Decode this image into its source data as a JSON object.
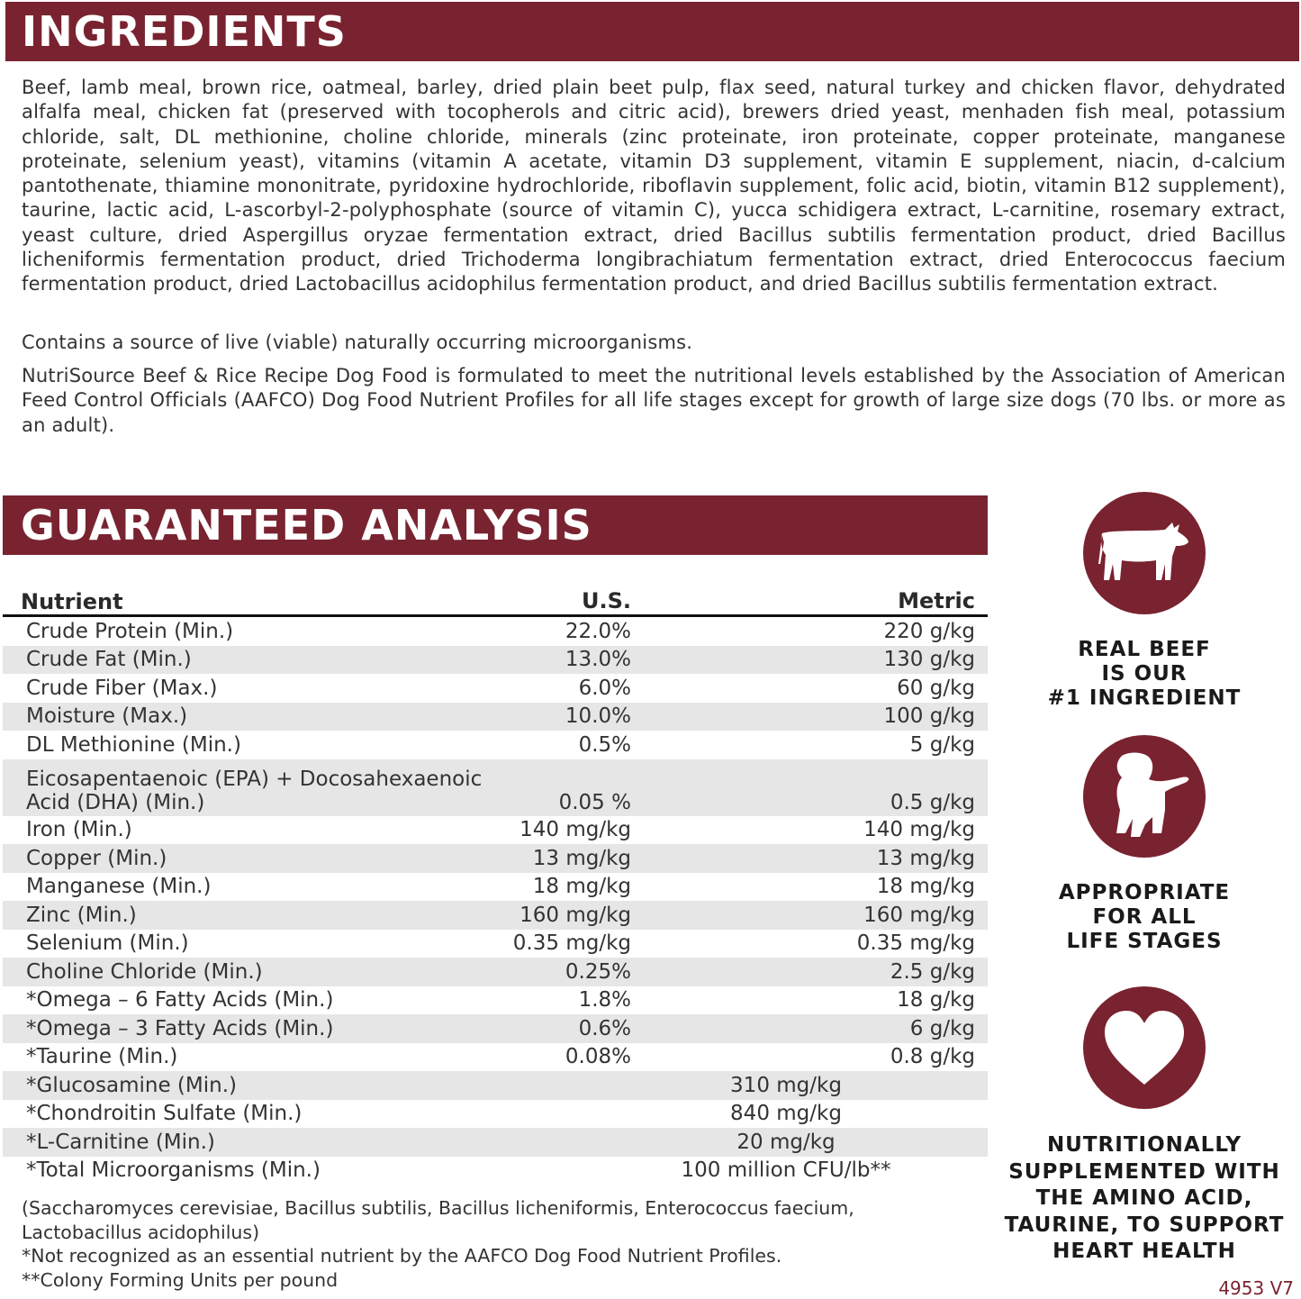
{
  "ingredients": {
    "title": "INGREDIENTS",
    "text": "Beef, lamb meal, brown rice, oatmeal, barley, dried plain beet pulp, flax seed, natural turkey and chicken flavor, dehydrated alfalfa meal, chicken fat (preserved with tocopherols and citric acid), brewers dried yeast, menhaden fish meal, potassium chloride, salt, DL methionine, choline chloride, minerals (zinc proteinate, iron proteinate, copper proteinate, manganese proteinate, selenium yeast), vitamins (vitamin A acetate, vitamin D3 supplement, vitamin E supplement, niacin, d-calcium pantothenate, thiamine mononitrate, pyridoxine hydrochloride, riboflavin supplement, folic acid, biotin, vitamin B12 supplement), taurine, lactic acid, L-ascorbyl-2-polyphosphate (source of vitamin C), yucca schidigera extract, L-carnitine, rosemary extract, yeast culture, dried Aspergillus oryzae fermentation extract, dried Bacillus subtilis fermentation product, dried Bacillus licheniformis fermentation product, dried Trichoderma longibrachiatum fermentation extract, dried Enterococcus faecium fermentation product, dried Lactobacillus acidophilus fermentation product, and dried Bacillus subtilis fermentation extract.",
    "microorganisms": "Contains a source of live (viable) naturally occurring microorganisms.",
    "aafco": "NutriSource Beef & Rice Recipe Dog Food is formulated to meet the nutritional levels established by the Association of American Feed Control Officials (AAFCO) Dog Food Nutrient Profiles for all life stages except for growth of large size dogs (70 lbs. or more as an adult)."
  },
  "analysis": {
    "title": "GUARANTEED ANALYSIS",
    "headers": [
      "Nutrient",
      "U.S.",
      "Metric"
    ],
    "rows": [
      {
        "nutrient": "Crude Protein (Min.)",
        "us": "22.0%",
        "metric": "220 g/kg"
      },
      {
        "nutrient": "Crude Fat (Min.)",
        "us": "13.0%",
        "metric": "130 g/kg"
      },
      {
        "nutrient": "Crude Fiber (Max.)",
        "us": "6.0%",
        "metric": "60 g/kg"
      },
      {
        "nutrient": "Moisture (Max.)",
        "us": "10.0%",
        "metric": "100 g/kg"
      },
      {
        "nutrient": "DL Methionine (Min.)",
        "us": "0.5%",
        "metric": "5 g/kg"
      },
      {
        "nutrient": "Eicosapentaenoic (EPA) + Docosahexaenoic Acid (DHA) (Min.)",
        "us": "0.05 %",
        "metric": "0.5 g/kg"
      },
      {
        "nutrient": "Iron (Min.)",
        "us": "140 mg/kg",
        "metric": "140 mg/kg"
      },
      {
        "nutrient": "Copper (Min.)",
        "us": "13 mg/kg",
        "metric": "13 mg/kg"
      },
      {
        "nutrient": "Manganese (Min.)",
        "us": "18 mg/kg",
        "metric": "18 mg/kg"
      },
      {
        "nutrient": "Zinc (Min.)",
        "us": "160 mg/kg",
        "metric": "160 mg/kg"
      },
      {
        "nutrient": "Selenium (Min.)",
        "us": "0.35 mg/kg",
        "metric": "0.35 mg/kg"
      },
      {
        "nutrient": "Choline Chloride (Min.)",
        "us": "0.25%",
        "metric": "2.5 g/kg"
      },
      {
        "nutrient": "*Omega – 6 Fatty Acids (Min.)",
        "us": "1.8%",
        "metric": "18 g/kg"
      },
      {
        "nutrient": "*Omega – 3 Fatty Acids (Min.)",
        "us": "0.6%",
        "metric": "6 g/kg"
      },
      {
        "nutrient": "*Taurine (Min.)",
        "us": "0.08%",
        "metric": "0.8 g/kg"
      }
    ],
    "merged_rows": [
      {
        "nutrient": "*Glucosamine (Min.)",
        "value": "310 mg/kg"
      },
      {
        "nutrient": "*Chondroitin Sulfate (Min.)",
        "value": "840 mg/kg"
      },
      {
        "nutrient": "*L-Carnitine (Min.)",
        "value": "20 mg/kg"
      },
      {
        "nutrient": "*Total Microorganisms (Min.)",
        "value": "100 million CFU/lb**"
      }
    ],
    "footnotes": [
      "(Saccharomyces cerevisiae, Bacillus subtilis, Bacillus licheniformis, Enterococcus faecium, Lactobacillus acidophilus)",
      "*Not recognized as an essential nutrient by the AAFCO Dog Food Nutrient Profiles.",
      "**Colony Forming Units per pound"
    ]
  },
  "features": [
    {
      "icon": "cow-icon",
      "lines": [
        "REAL BEEF",
        "IS OUR",
        "#1 INGREDIENT"
      ]
    },
    {
      "icon": "puppy-icon",
      "lines": [
        "APPROPRIATE",
        "FOR ALL",
        "LIFE STAGES"
      ]
    },
    {
      "icon": "heart-icon",
      "lines": [
        "NUTRITIONALLY",
        "SUPPLEMENTED WITH",
        "THE AMINO ACID,",
        "TAURINE, TO SUPPORT",
        "HEART HEALTH"
      ]
    }
  ],
  "code": "4953 V7",
  "colors": {
    "brand": "#7a2330",
    "row_alt": "#e6e6e7"
  }
}
